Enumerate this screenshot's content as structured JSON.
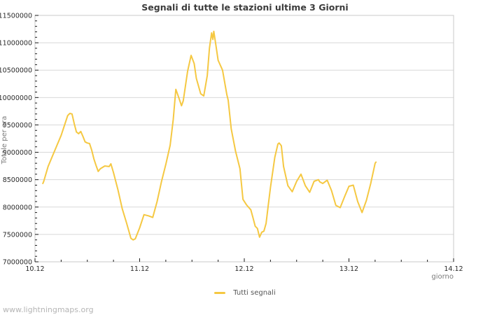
{
  "page": {
    "title": "Segnali di tutte le stazioni ultime 3 Giorni",
    "watermark": "www.lightningmaps.org"
  },
  "legend": {
    "items": [
      {
        "label": "Tutti segnali",
        "color": "#f5c842"
      }
    ]
  },
  "colors": {
    "line": "#f5c842",
    "grid": "#d8d8d8",
    "border": "#c8c8c8",
    "ticks": "#1a1a1a",
    "tick_labels": "#2a2a2a"
  },
  "chart_data": {
    "type": "line",
    "title": "Segnali di tutte le stazioni ultime 3 Giorni",
    "xlabel": "giorno",
    "ylabel": "Totale per ora",
    "grid": "horizontal",
    "legend_position": "bottom-center",
    "xlim_days": [
      0,
      4
    ],
    "ylim": [
      7000000,
      11500000
    ],
    "ytick_step": 500000,
    "y_minor_step": 100000,
    "x_minor_step_days": 0.25,
    "xticks": [
      {
        "day": 0,
        "label": "10.12"
      },
      {
        "day": 1,
        "label": "11.12"
      },
      {
        "day": 2,
        "label": "12.12"
      },
      {
        "day": 3,
        "label": "13.12"
      },
      {
        "day": 4,
        "label": "14.12"
      }
    ],
    "series": [
      {
        "name": "Tutti segnali",
        "color": "#f5c842",
        "x_unit": "hours since 10.12 00:00",
        "points": [
          [
            1.8,
            8430000
          ],
          [
            2,
            8470000
          ],
          [
            3,
            8740000
          ],
          [
            4,
            8930000
          ],
          [
            5,
            9120000
          ],
          [
            6,
            9310000
          ],
          [
            7,
            9550000
          ],
          [
            7.5,
            9670000
          ],
          [
            8,
            9710000
          ],
          [
            8.5,
            9700000
          ],
          [
            9,
            9520000
          ],
          [
            9.5,
            9370000
          ],
          [
            10,
            9340000
          ],
          [
            10.5,
            9380000
          ],
          [
            11,
            9290000
          ],
          [
            11.5,
            9190000
          ],
          [
            12,
            9170000
          ],
          [
            12.5,
            9160000
          ],
          [
            13,
            9040000
          ],
          [
            13.5,
            8880000
          ],
          [
            14,
            8760000
          ],
          [
            14.5,
            8650000
          ],
          [
            15,
            8700000
          ],
          [
            16,
            8750000
          ],
          [
            17,
            8740000
          ],
          [
            17.4,
            8790000
          ],
          [
            18,
            8630000
          ],
          [
            19,
            8320000
          ],
          [
            20,
            7970000
          ],
          [
            21,
            7710000
          ],
          [
            22,
            7430000
          ],
          [
            22.5,
            7400000
          ],
          [
            23,
            7420000
          ],
          [
            24,
            7620000
          ],
          [
            25,
            7860000
          ],
          [
            26,
            7840000
          ],
          [
            27,
            7810000
          ],
          [
            28,
            8100000
          ],
          [
            29,
            8460000
          ],
          [
            30,
            8780000
          ],
          [
            31,
            9130000
          ],
          [
            31.7,
            9600000
          ],
          [
            32.3,
            10150000
          ],
          [
            33,
            9990000
          ],
          [
            33.6,
            9850000
          ],
          [
            34,
            9940000
          ],
          [
            35,
            10480000
          ],
          [
            35.8,
            10770000
          ],
          [
            36.5,
            10620000
          ],
          [
            37,
            10350000
          ],
          [
            38,
            10070000
          ],
          [
            38.7,
            10030000
          ],
          [
            39.5,
            10400000
          ],
          [
            40,
            10900000
          ],
          [
            40.5,
            11180000
          ],
          [
            40.8,
            11060000
          ],
          [
            41,
            11210000
          ],
          [
            41.5,
            10950000
          ],
          [
            42,
            10680000
          ],
          [
            43,
            10500000
          ],
          [
            44,
            10050000
          ],
          [
            44.3,
            9950000
          ],
          [
            45,
            9430000
          ],
          [
            46,
            9020000
          ],
          [
            47,
            8700000
          ],
          [
            47.7,
            8140000
          ],
          [
            48.5,
            8040000
          ],
          [
            49.5,
            7950000
          ],
          [
            50,
            7800000
          ],
          [
            50.5,
            7650000
          ],
          [
            51,
            7610000
          ],
          [
            51.5,
            7450000
          ],
          [
            52,
            7540000
          ],
          [
            52.5,
            7560000
          ],
          [
            53,
            7700000
          ],
          [
            53.5,
            8040000
          ],
          [
            54,
            8360000
          ],
          [
            55,
            8910000
          ],
          [
            55.7,
            9150000
          ],
          [
            56,
            9170000
          ],
          [
            56.5,
            9120000
          ],
          [
            57,
            8740000
          ],
          [
            58,
            8390000
          ],
          [
            59,
            8280000
          ],
          [
            60,
            8470000
          ],
          [
            61,
            8600000
          ],
          [
            62,
            8390000
          ],
          [
            63,
            8270000
          ],
          [
            64,
            8470000
          ],
          [
            65,
            8500000
          ],
          [
            65.3,
            8460000
          ],
          [
            66,
            8430000
          ],
          [
            67,
            8490000
          ],
          [
            68,
            8300000
          ],
          [
            69,
            8030000
          ],
          [
            70,
            7990000
          ],
          [
            71,
            8190000
          ],
          [
            72,
            8380000
          ],
          [
            73,
            8400000
          ],
          [
            74,
            8100000
          ],
          [
            75,
            7900000
          ],
          [
            76,
            8120000
          ],
          [
            77,
            8430000
          ],
          [
            78,
            8800000
          ],
          [
            78.2,
            8820000
          ]
        ]
      }
    ]
  }
}
